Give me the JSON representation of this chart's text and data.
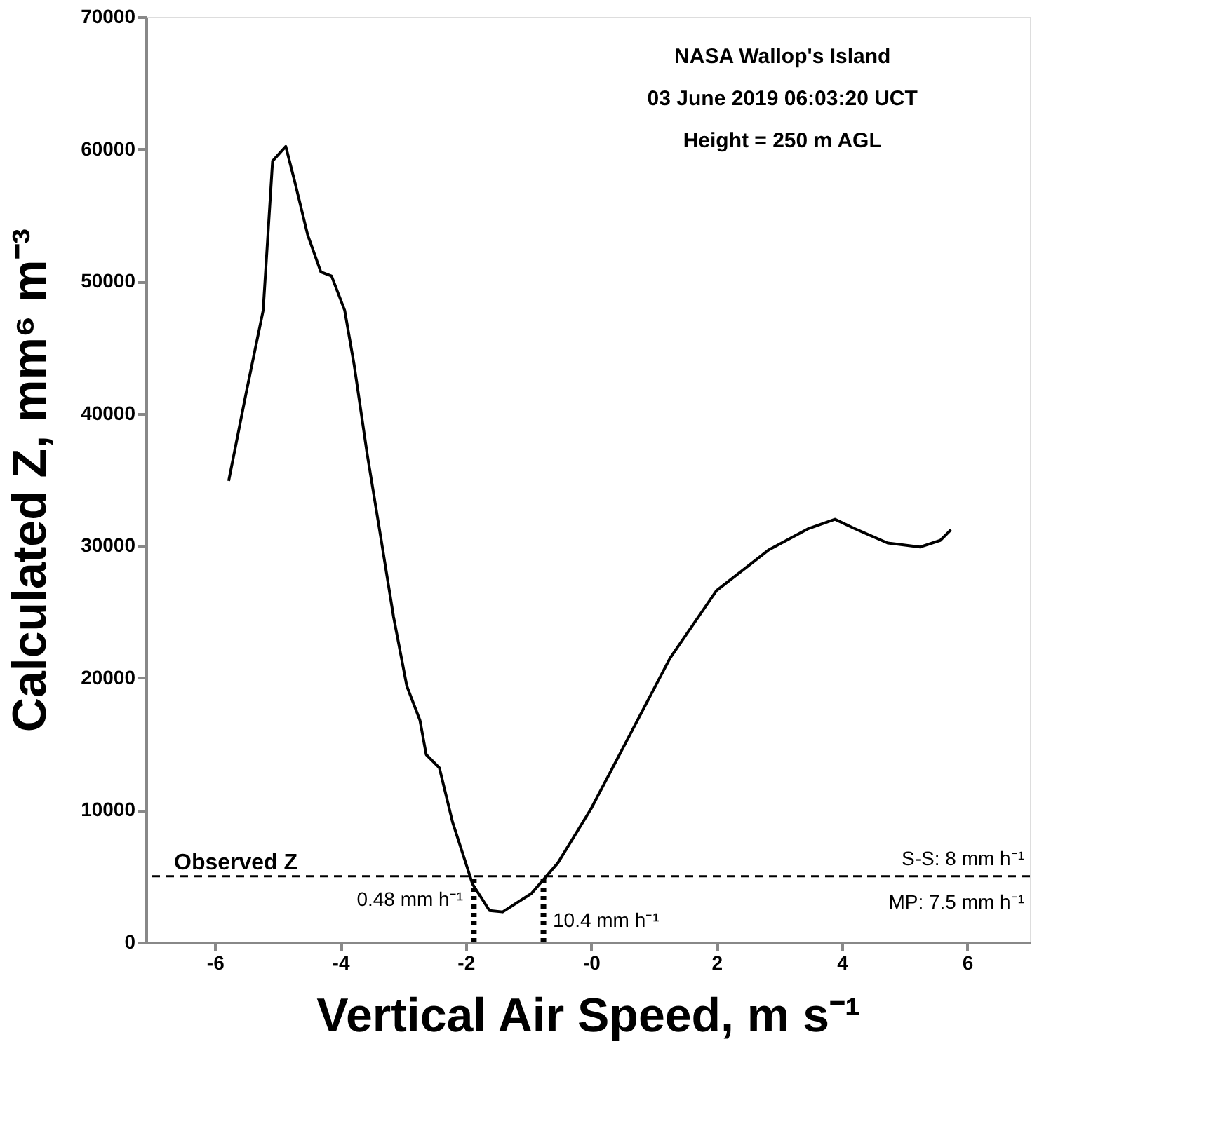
{
  "chart_data": {
    "type": "line",
    "xlabel": "Vertical Air Speed, m s⁻¹",
    "ylabel": "Calculated Z, mm⁶ m⁻³",
    "xlim": [
      -7.1,
      7
    ],
    "xticks": [
      -6,
      -4,
      -2,
      {
        "value": 0,
        "label": "-0"
      },
      2,
      4,
      6
    ],
    "ylim": [
      0,
      70000
    ],
    "yticks": [
      0,
      10000,
      20000,
      30000,
      40000,
      50000,
      60000,
      70000
    ],
    "grid": false,
    "series": [
      {
        "color": "#000000",
        "line_style": "solid",
        "x": [
          -5.78,
          -5.5,
          -5.23,
          -5.08,
          -4.87,
          -4.73,
          -4.52,
          -4.31,
          -4.14,
          -3.93,
          -3.78,
          -3.57,
          -3.36,
          -3.15,
          -2.94,
          -2.73,
          -2.63,
          -2.42,
          -2.21,
          -1.89,
          -1.62,
          -1.41,
          -0.95,
          -0.53,
          0,
          0.63,
          1.26,
          2.0,
          2.84,
          3.47,
          3.89,
          4.2,
          4.73,
          5.25,
          5.57,
          5.74
        ],
        "values": [
          34900,
          41600,
          47800,
          59100,
          60200,
          57600,
          53500,
          50700,
          50400,
          47800,
          43700,
          36900,
          30800,
          24600,
          19400,
          16800,
          14200,
          13200,
          9100,
          4400,
          2400,
          2300,
          3700,
          6000,
          10100,
          15800,
          21500,
          26600,
          29700,
          31300,
          32000,
          31300,
          30200,
          29900,
          30400,
          31200
        ]
      },
      {
        "color": "#000000",
        "line_style": "dotted",
        "x": [
          -1.87,
          -1.87
        ],
        "values": [
          0,
          5000
        ]
      },
      {
        "color": "#000000",
        "line_style": "dotted",
        "x": [
          -0.76,
          -0.76
        ],
        "values": [
          0,
          5000
        ]
      }
    ],
    "ref_lines": [
      {
        "axis": "y",
        "value": 5000,
        "label": "Observed Z",
        "line_style": "dashed",
        "color": "#000000"
      }
    ],
    "annotations": [
      "NASA Wallop's Island",
      "03 June 2019 06:03:20 UCT",
      "Height = 250 m AGL",
      "0.48 mm h⁻¹",
      "10.4 mm h⁻¹",
      "S-S: 8 mm h⁻¹",
      "MP: 7.5 mm h⁻¹"
    ]
  }
}
